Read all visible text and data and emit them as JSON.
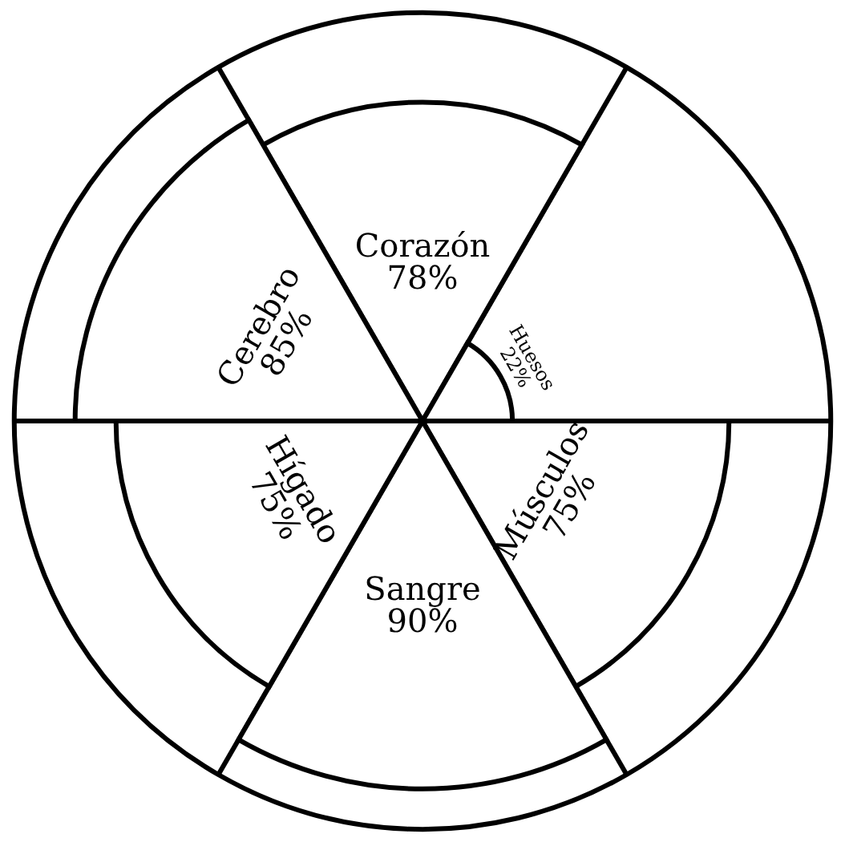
{
  "chart_data": {
    "type": "other",
    "categories": [
      "Corazón",
      "Huesos",
      "Músculos",
      "Sangre",
      "Hígado",
      "Cerebro"
    ],
    "values": [
      78,
      22,
      75,
      90,
      75,
      85
    ],
    "value_labels": [
      "78%",
      "22%",
      "75%",
      "90%",
      "75%",
      "85%"
    ],
    "color": "#ffffff"
  }
}
